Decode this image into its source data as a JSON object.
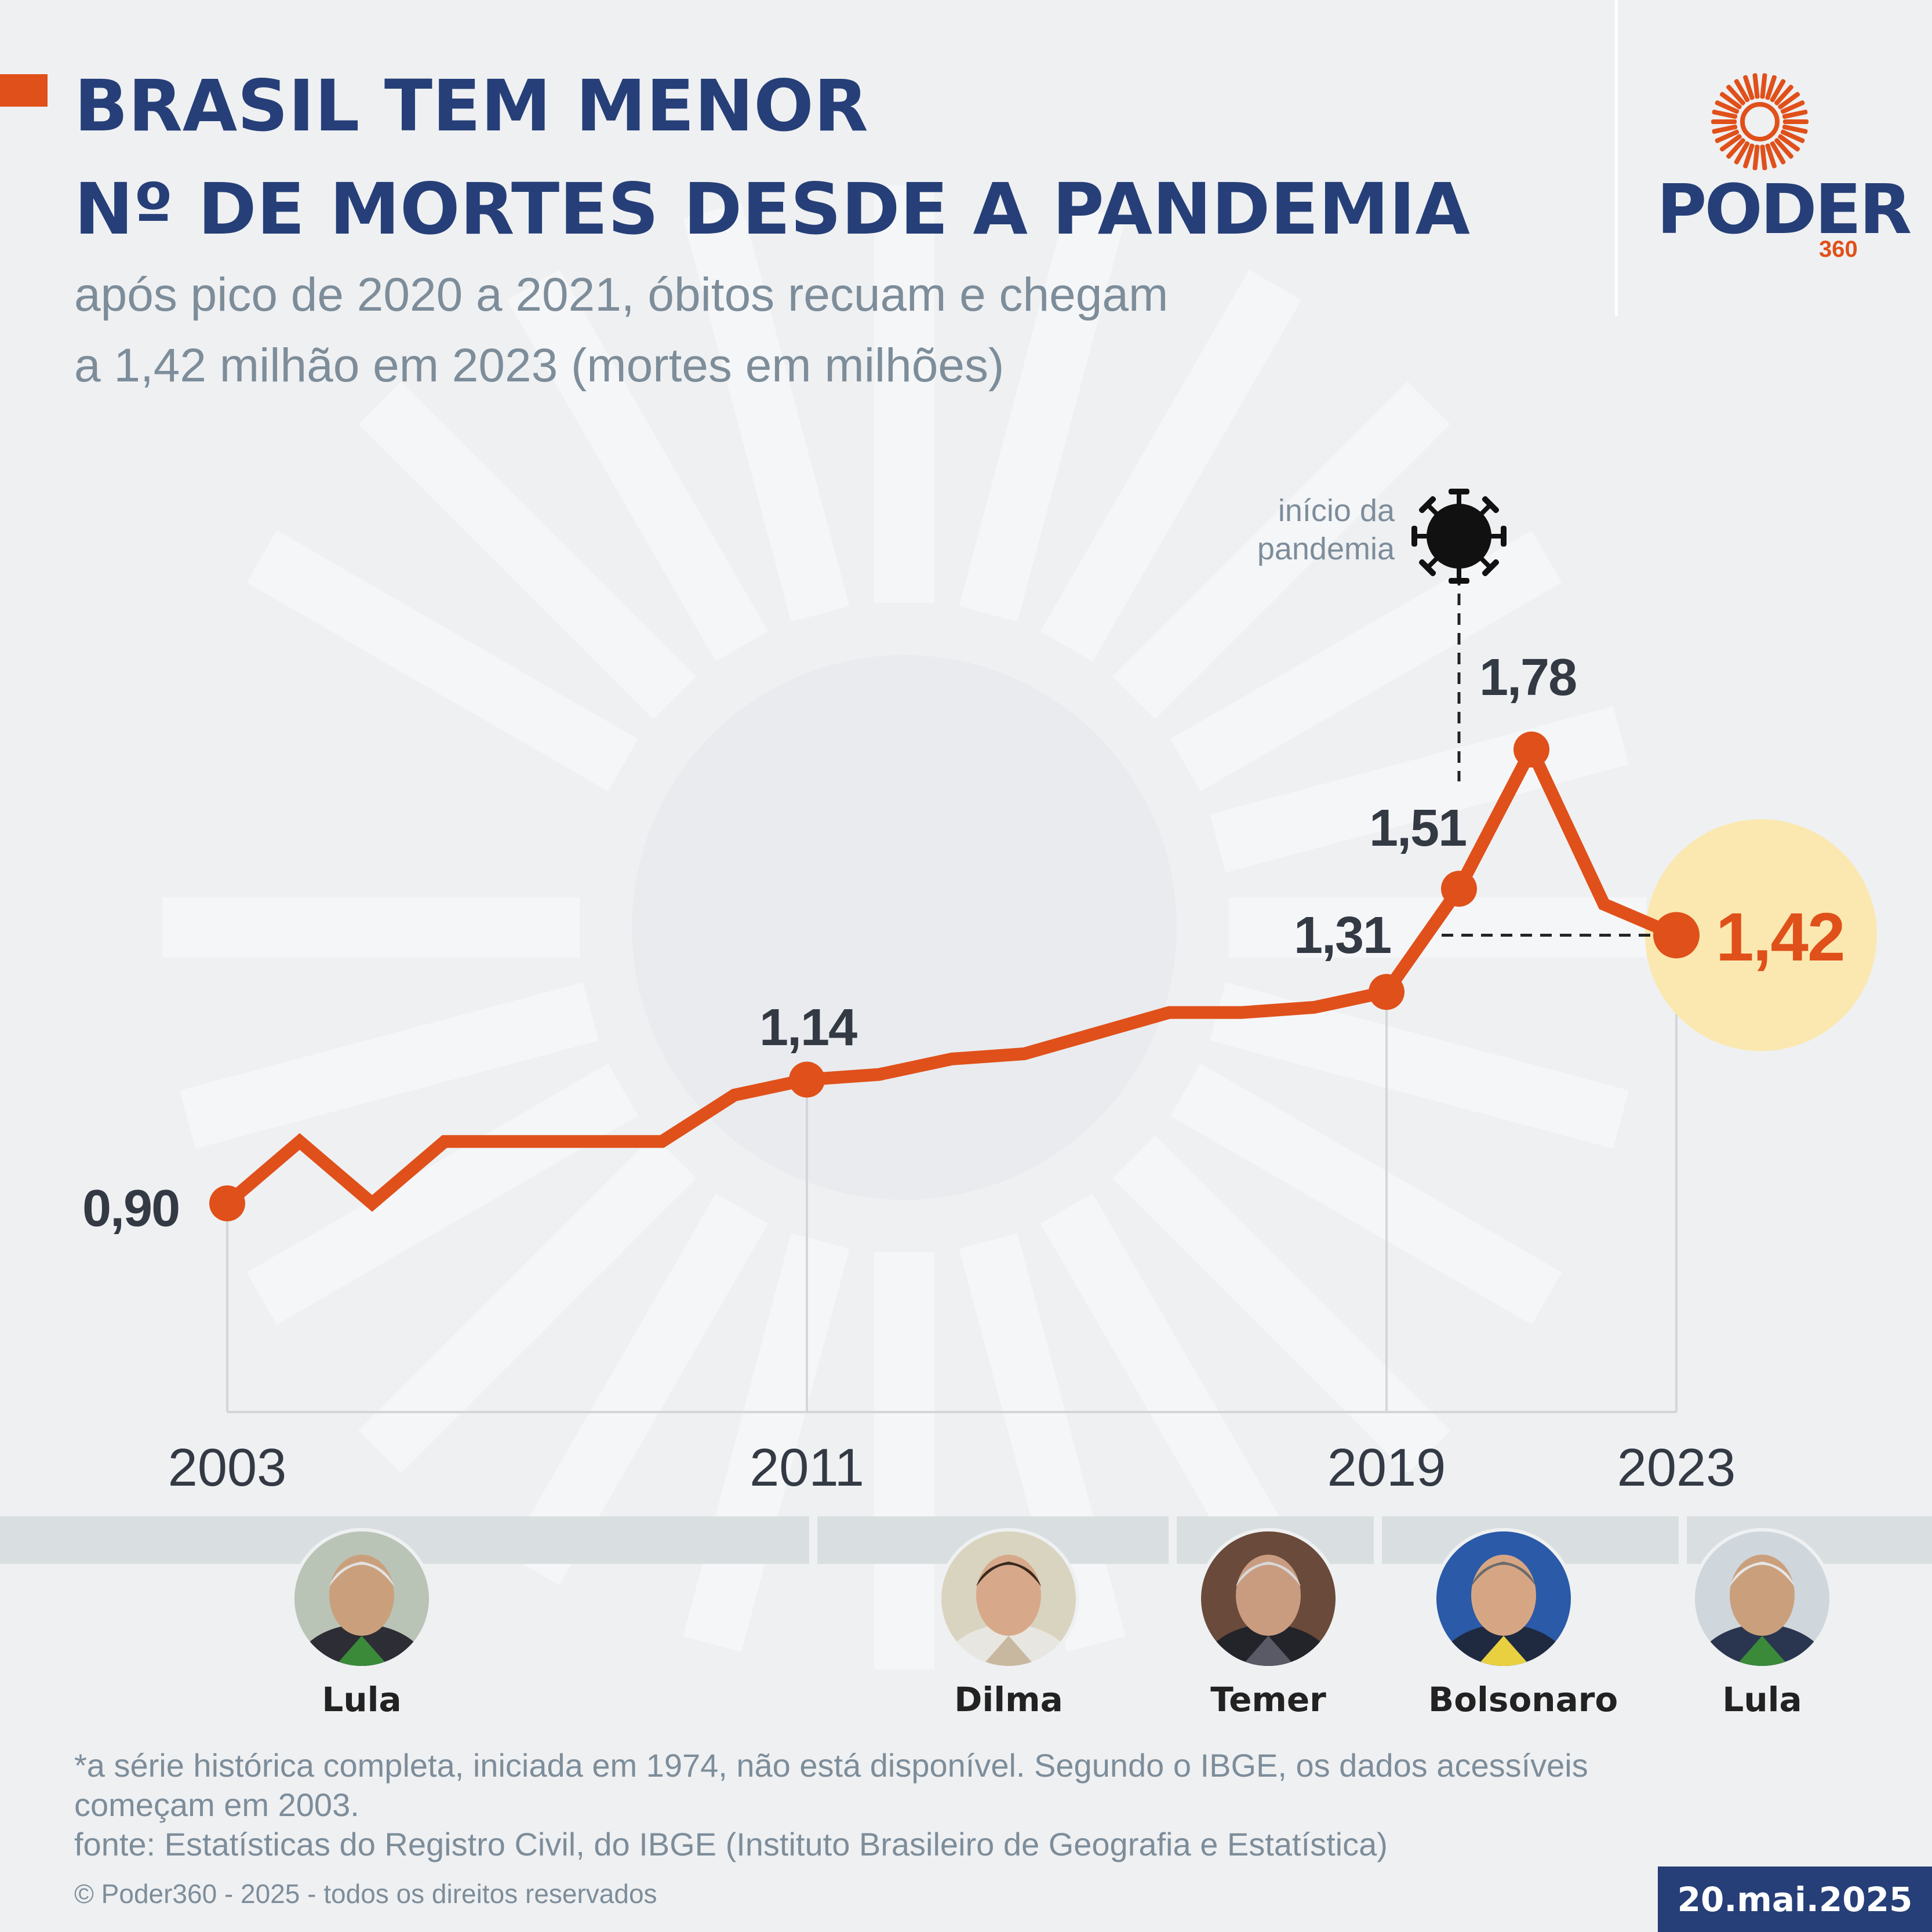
{
  "header": {
    "title_line1": "BRASIL TEM MENOR",
    "title_line2": "Nº DE MORTES DESDE A PANDEMIA",
    "subtitle_line1": "após pico de 2020 a 2021, óbitos recuam e chegam",
    "subtitle_line2": "a 1,42 milhão em 2023 (mortes em milhões)"
  },
  "logo": {
    "word": "PODER",
    "number": "360",
    "icon": "sun-rays-icon"
  },
  "annotation": {
    "pandemic_line1": "início da",
    "pandemic_line2": "pandemia",
    "icon": "virus-icon",
    "pandemic_year": 2020
  },
  "chart_data": {
    "type": "line",
    "x": [
      2003,
      2004,
      2005,
      2006,
      2007,
      2008,
      2009,
      2010,
      2011,
      2012,
      2013,
      2014,
      2015,
      2016,
      2017,
      2018,
      2019,
      2020,
      2021,
      2022,
      2023
    ],
    "values": [
      0.9,
      1.02,
      0.9,
      1.02,
      1.02,
      1.02,
      1.02,
      1.11,
      1.14,
      1.15,
      1.18,
      1.19,
      1.23,
      1.27,
      1.27,
      1.28,
      1.31,
      1.51,
      1.78,
      1.48,
      1.42
    ],
    "labeled_points": [
      {
        "x": 2003,
        "label": "0,90"
      },
      {
        "x": 2011,
        "label": "1,14"
      },
      {
        "x": 2019,
        "label": "1,31"
      },
      {
        "x": 2020,
        "label": "1,51"
      },
      {
        "x": 2021,
        "label": "1,78"
      },
      {
        "x": 2023,
        "label": "1,42"
      }
    ],
    "highlight_year": 2023,
    "x_ticks": [
      "2003",
      "2011",
      "2019",
      "2023"
    ],
    "ylim": [
      0.9,
      1.78
    ],
    "grid": false,
    "colors": {
      "line": "#e0501a",
      "highlight_circle": "#fbe8b0",
      "title": "#263f78"
    }
  },
  "presidents": [
    {
      "name": "Lula",
      "term_start": 2003,
      "term_end": 2010
    },
    {
      "name": "Dilma",
      "term_start": 2011,
      "term_end": 2016
    },
    {
      "name": "Temer",
      "term_start": 2016,
      "term_end": 2018
    },
    {
      "name": "Bolsonaro",
      "term_start": 2019,
      "term_end": 2022
    },
    {
      "name": "Lula",
      "term_start": 2023,
      "term_end": 2025
    }
  ],
  "footer": {
    "note_line1": "*a série histórica completa, iniciada em 1974, não está disponível. Segundo o IBGE, os dados acessíveis",
    "note_line2": "começam em 2003.",
    "source": "fonte: Estatísticas do Registro Civil, do IBGE (Instituto Brasileiro de Geografia e Estatística)",
    "copyright": "© Poder360 - 2025 - todos os direitos reservados",
    "date": "20.mai.2025"
  }
}
